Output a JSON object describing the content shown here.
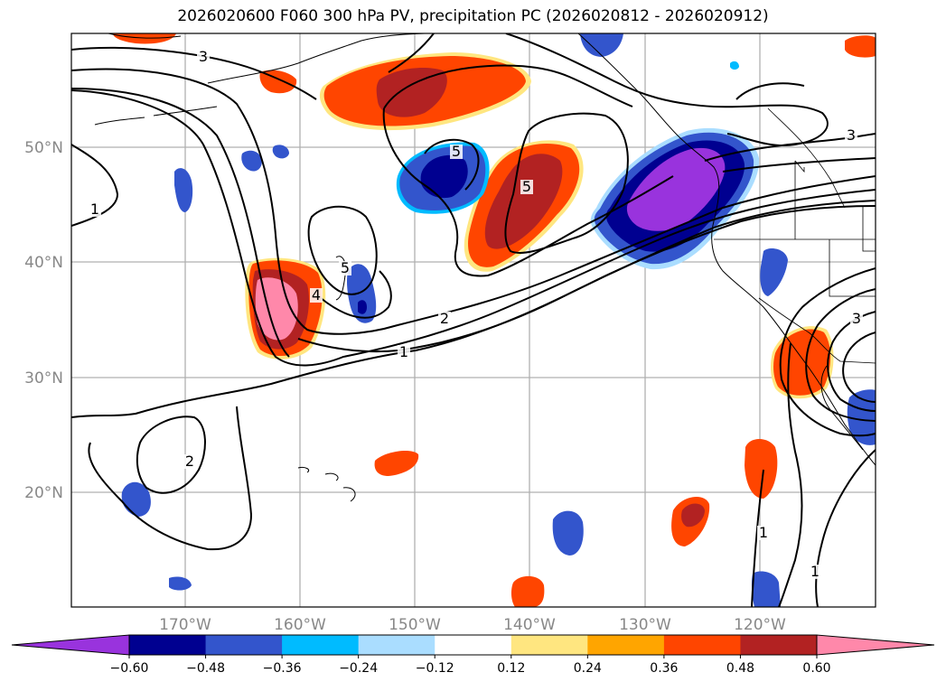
{
  "title": "2026020600 F060 300 hPa PV, precipitation PC (2026020812 - 2026020912)",
  "map": {
    "lat_labels": [
      "50°N",
      "40°N",
      "30°N",
      "20°N"
    ],
    "lon_labels": [
      "170°W",
      "160°W",
      "150°W",
      "140°W",
      "130°W",
      "120°W"
    ],
    "contour_labels": [
      "3",
      "3",
      "3",
      "1",
      "1",
      "1",
      "1",
      "2",
      "2",
      "4",
      "5",
      "5",
      "5"
    ]
  },
  "colorbar": {
    "colors": [
      "#9933dd",
      "#000090",
      "#3355cc",
      "#00bbff",
      "#aaddff",
      "#ffffff",
      "#ffe680",
      "#ffa500",
      "#ff4500",
      "#b22222",
      "#ff88aa"
    ],
    "tick_labels": [
      "−0.60",
      "−0.48",
      "−0.36",
      "−0.24",
      "−0.12",
      "0.12",
      "0.24",
      "0.36",
      "0.48",
      "0.60"
    ]
  }
}
